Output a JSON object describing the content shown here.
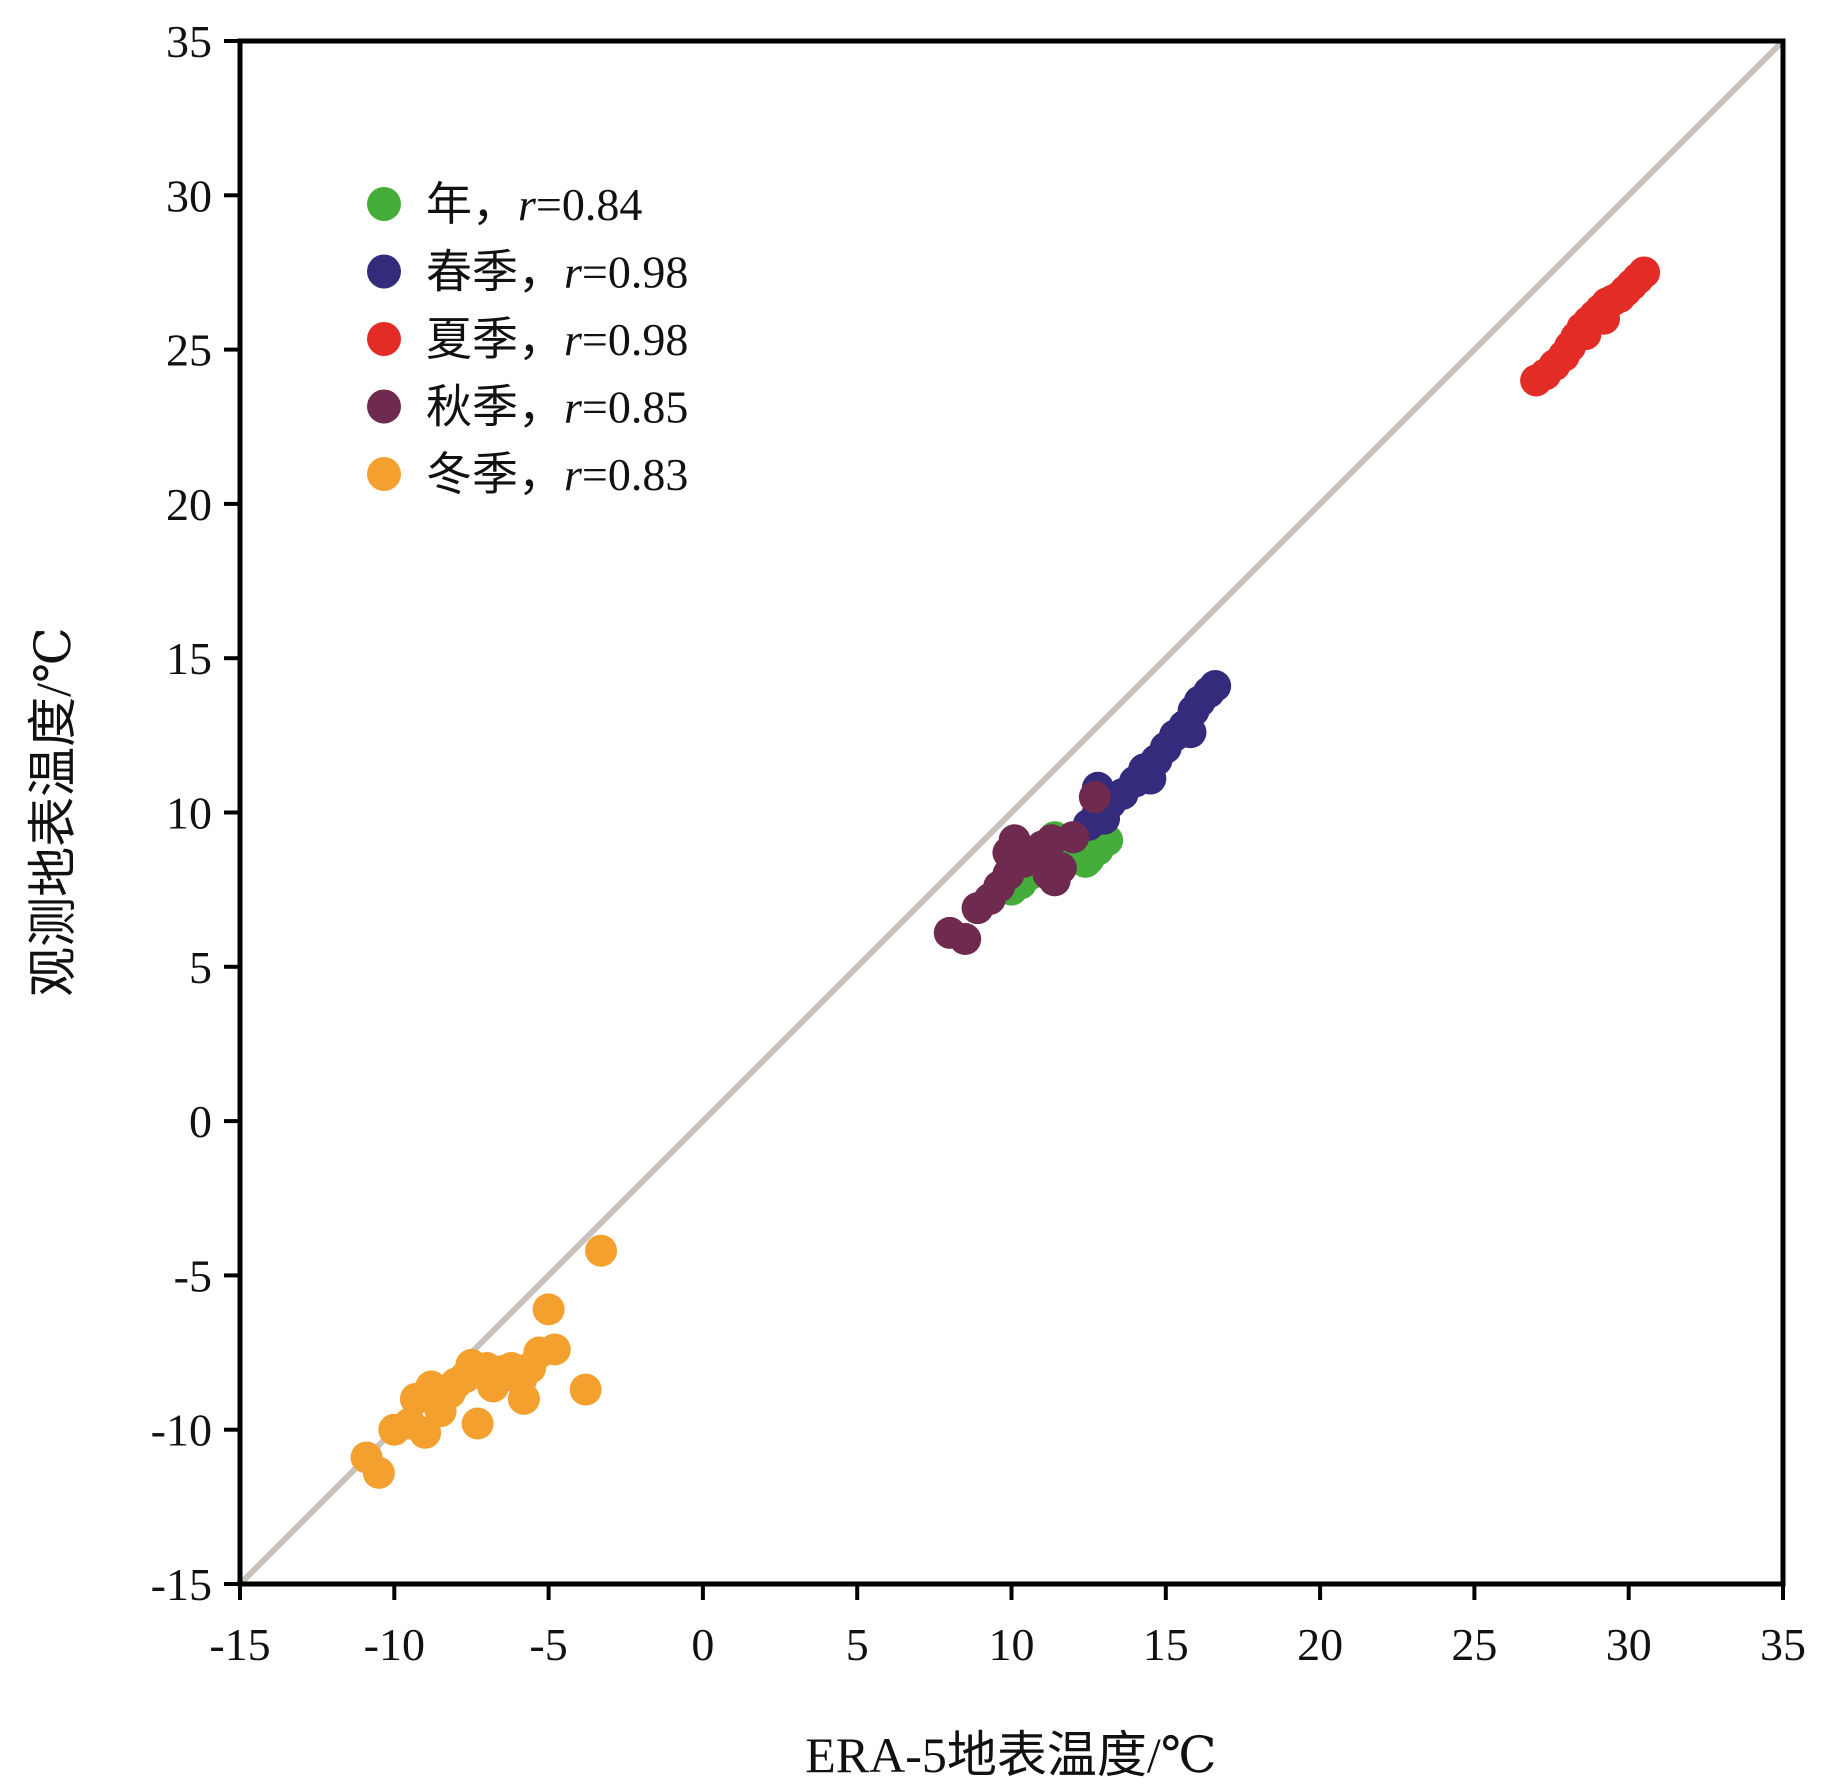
{
  "chart_data": {
    "type": "scatter",
    "title": "",
    "xlabel": "ERA-5地表温度/℃",
    "ylabel": "观测地表温度/℃",
    "xlim": [
      -15,
      35
    ],
    "ylim": [
      -15,
      35
    ],
    "xticks": [
      -15,
      -10,
      -5,
      0,
      5,
      10,
      15,
      20,
      25,
      30,
      35
    ],
    "yticks": [
      -15,
      -10,
      -5,
      0,
      5,
      10,
      15,
      20,
      25,
      30,
      35
    ],
    "grid": false,
    "legend_position": "top-left",
    "reference_line": {
      "type": "1:1",
      "from": [
        -15,
        -15
      ],
      "to": [
        35,
        35
      ],
      "color": "#c8c3bf"
    },
    "series": [
      {
        "name": "年",
        "label_suffix": "r=0.84",
        "r": 0.84,
        "color": "#45ad3a",
        "points": [
          [
            10.0,
            7.5
          ],
          [
            10.3,
            7.7
          ],
          [
            10.6,
            8.0
          ],
          [
            10.9,
            8.3
          ],
          [
            11.2,
            8.5
          ],
          [
            11.0,
            8.9
          ],
          [
            11.4,
            9.2
          ],
          [
            11.8,
            9.0
          ],
          [
            12.2,
            8.7
          ],
          [
            12.5,
            8.5
          ],
          [
            12.8,
            8.8
          ],
          [
            13.1,
            9.1
          ],
          [
            12.4,
            8.4
          ],
          [
            11.6,
            8.6
          ]
        ]
      },
      {
        "name": "春季",
        "label_suffix": "r=0.98",
        "r": 0.98,
        "color": "#342b7c",
        "points": [
          [
            12.0,
            9.2
          ],
          [
            12.5,
            9.6
          ],
          [
            12.8,
            10.0
          ],
          [
            12.8,
            10.8
          ],
          [
            13.2,
            10.3
          ],
          [
            13.6,
            10.6
          ],
          [
            14.0,
            11.0
          ],
          [
            14.3,
            11.4
          ],
          [
            14.7,
            11.7
          ],
          [
            15.0,
            12.1
          ],
          [
            15.3,
            12.5
          ],
          [
            15.6,
            12.8
          ],
          [
            15.9,
            13.3
          ],
          [
            16.1,
            13.6
          ],
          [
            16.4,
            13.9
          ],
          [
            16.6,
            14.1
          ],
          [
            13.0,
            9.8
          ],
          [
            14.5,
            11.1
          ],
          [
            15.8,
            12.6
          ]
        ]
      },
      {
        "name": "夏季",
        "label_suffix": "r=0.98",
        "r": 0.98,
        "color": "#e42c27",
        "points": [
          [
            27.0,
            24.0
          ],
          [
            27.3,
            24.2
          ],
          [
            27.6,
            24.5
          ],
          [
            27.9,
            24.8
          ],
          [
            28.1,
            25.1
          ],
          [
            28.3,
            25.4
          ],
          [
            28.5,
            25.7
          ],
          [
            28.7,
            25.9
          ],
          [
            28.9,
            26.1
          ],
          [
            29.1,
            26.3
          ],
          [
            29.3,
            26.5
          ],
          [
            29.5,
            26.6
          ],
          [
            29.7,
            26.7
          ],
          [
            29.9,
            26.9
          ],
          [
            30.1,
            27.1
          ],
          [
            30.3,
            27.3
          ],
          [
            30.5,
            27.5
          ],
          [
            28.6,
            25.5
          ],
          [
            29.2,
            26.0
          ]
        ]
      },
      {
        "name": "秋季",
        "label_suffix": "r=0.85",
        "r": 0.85,
        "color": "#6f2b4f",
        "points": [
          [
            8.0,
            6.1
          ],
          [
            8.5,
            5.9
          ],
          [
            8.9,
            6.9
          ],
          [
            9.3,
            7.2
          ],
          [
            9.6,
            7.6
          ],
          [
            9.9,
            8.0
          ],
          [
            9.9,
            8.7
          ],
          [
            10.1,
            9.1
          ],
          [
            10.4,
            8.4
          ],
          [
            10.7,
            8.6
          ],
          [
            11.0,
            8.9
          ],
          [
            11.3,
            9.1
          ],
          [
            11.6,
            8.2
          ],
          [
            12.0,
            9.2
          ],
          [
            12.7,
            10.5
          ],
          [
            10.0,
            8.5
          ],
          [
            11.2,
            8.0
          ],
          [
            11.4,
            7.8
          ]
        ]
      },
      {
        "name": "冬季",
        "label_suffix": "r=0.83",
        "r": 0.83,
        "color": "#f3a02f",
        "points": [
          [
            -10.9,
            -10.9
          ],
          [
            -10.5,
            -11.4
          ],
          [
            -10.0,
            -10.0
          ],
          [
            -9.5,
            -9.8
          ],
          [
            -9.3,
            -9.0
          ],
          [
            -9.0,
            -10.1
          ],
          [
            -8.8,
            -8.6
          ],
          [
            -8.5,
            -9.4
          ],
          [
            -8.2,
            -8.8
          ],
          [
            -8.0,
            -8.5
          ],
          [
            -7.7,
            -8.3
          ],
          [
            -7.5,
            -7.9
          ],
          [
            -7.3,
            -9.8
          ],
          [
            -7.0,
            -8.0
          ],
          [
            -6.8,
            -8.6
          ],
          [
            -6.5,
            -8.1
          ],
          [
            -6.2,
            -8.0
          ],
          [
            -5.9,
            -8.4
          ],
          [
            -5.6,
            -8.0
          ],
          [
            -5.8,
            -9.0
          ],
          [
            -5.3,
            -7.5
          ],
          [
            -5.0,
            -6.1
          ],
          [
            -4.8,
            -7.4
          ],
          [
            -3.8,
            -8.7
          ],
          [
            -3.3,
            -4.2
          ]
        ]
      }
    ]
  }
}
